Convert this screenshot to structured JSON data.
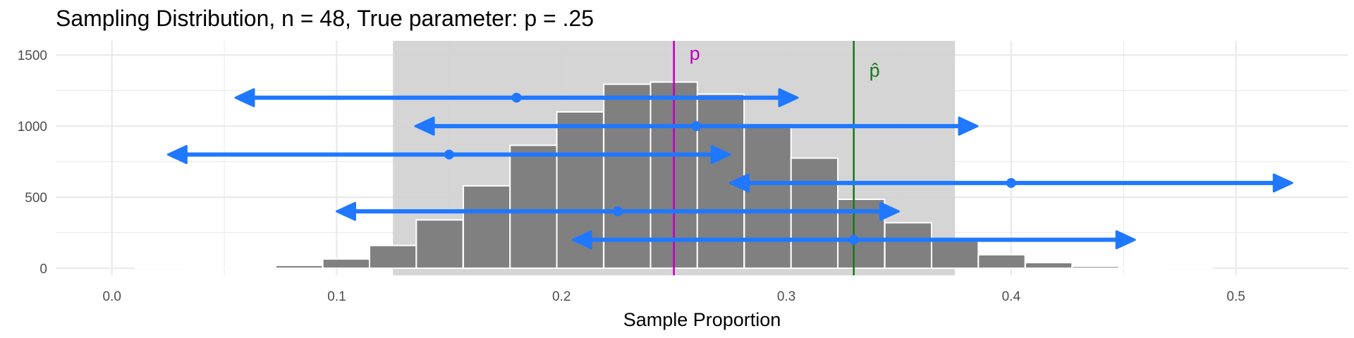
{
  "title": "Sampling Distribution, n = 48, True parameter: p = .25",
  "colors": {
    "bar_fill": "#808080",
    "bar_stroke": "#ffffff",
    "band_fill": "#d3d3d3",
    "interval": "#1f78ff",
    "p_line": "#c000c0",
    "phat_line": "#1a7a1a",
    "grid": "#ebebeb"
  },
  "chart_data": {
    "type": "bar",
    "title": "Sampling Distribution, n = 48, True parameter: p = .25",
    "xlabel": "Sample Proportion",
    "ylabel": "",
    "xlim": [
      -0.025,
      0.55
    ],
    "ylim": [
      -50,
      1600
    ],
    "x_ticks": [
      0.0,
      0.1,
      0.2,
      0.3,
      0.4,
      0.5
    ],
    "x_tick_labels": [
      "0.0",
      "0.1",
      "0.2",
      "0.3",
      "0.4",
      "0.5"
    ],
    "y_ticks": [
      0,
      500,
      1000,
      1500
    ],
    "y_tick_labels": [
      "0",
      "500",
      "1000",
      "1500"
    ],
    "grid": true,
    "bin_width": 0.0208,
    "bins": [
      {
        "x": 0.0208,
        "count": 1
      },
      {
        "x": 0.0417,
        "count": 3
      },
      {
        "x": 0.0625,
        "count": 6
      },
      {
        "x": 0.0833,
        "count": 20
      },
      {
        "x": 0.1042,
        "count": 65
      },
      {
        "x": 0.125,
        "count": 160
      },
      {
        "x": 0.1458,
        "count": 340
      },
      {
        "x": 0.1667,
        "count": 580
      },
      {
        "x": 0.1875,
        "count": 865
      },
      {
        "x": 0.2083,
        "count": 1100
      },
      {
        "x": 0.2292,
        "count": 1295
      },
      {
        "x": 0.25,
        "count": 1310
      },
      {
        "x": 0.2708,
        "count": 1225
      },
      {
        "x": 0.2917,
        "count": 1005
      },
      {
        "x": 0.3125,
        "count": 775
      },
      {
        "x": 0.3333,
        "count": 485
      },
      {
        "x": 0.3542,
        "count": 320
      },
      {
        "x": 0.375,
        "count": 190
      },
      {
        "x": 0.3958,
        "count": 95
      },
      {
        "x": 0.4167,
        "count": 40
      },
      {
        "x": 0.4375,
        "count": 14
      },
      {
        "x": 0.4583,
        "count": 4
      },
      {
        "x": 0.4792,
        "count": 1
      }
    ],
    "shaded_region": [
      0.125,
      0.375
    ],
    "p_line": {
      "x": 0.25,
      "label": "p"
    },
    "phat_line": {
      "x": 0.33,
      "label": "p̂"
    },
    "intervals": [
      {
        "y": 1200,
        "center": 0.18,
        "low": 0.055,
        "high": 0.305
      },
      {
        "y": 1000,
        "center": 0.26,
        "low": 0.135,
        "high": 0.385
      },
      {
        "y": 800,
        "center": 0.15,
        "low": 0.025,
        "high": 0.275
      },
      {
        "y": 600,
        "center": 0.4,
        "low": 0.275,
        "high": 0.525
      },
      {
        "y": 400,
        "center": 0.225,
        "low": 0.1,
        "high": 0.35
      },
      {
        "y": 200,
        "center": 0.33,
        "low": 0.205,
        "high": 0.455
      }
    ]
  }
}
